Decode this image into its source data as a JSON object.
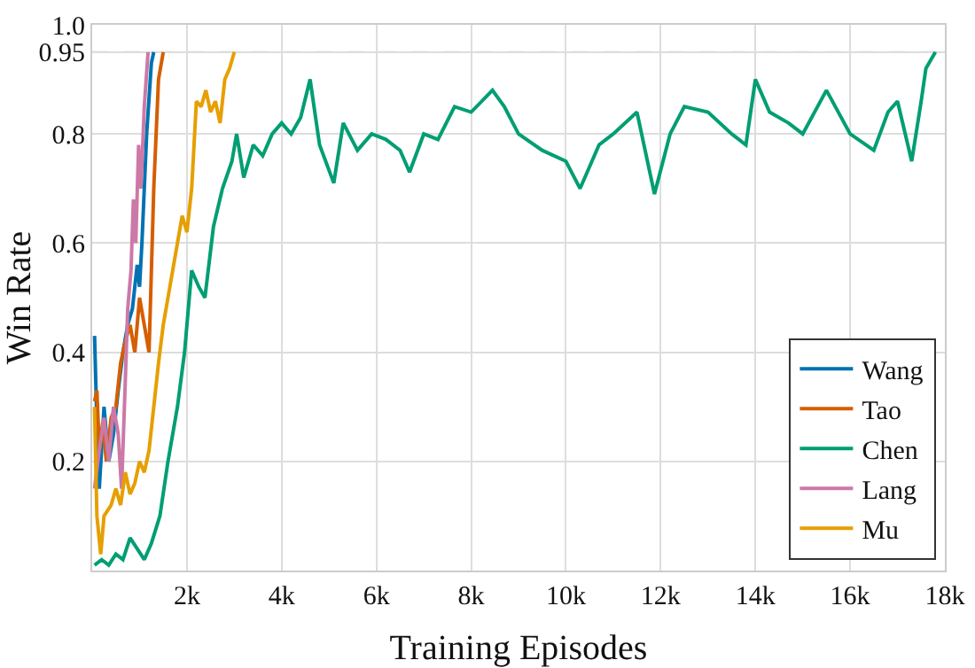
{
  "chart_data": {
    "type": "line",
    "xlabel": "Training Episodes",
    "ylabel": "Win Rate",
    "xlim": [
      0,
      18000
    ],
    "ylim": [
      0,
      1
    ],
    "xticks": [
      {
        "value": 2000,
        "label": "2k"
      },
      {
        "value": 4000,
        "label": "4k"
      },
      {
        "value": 6000,
        "label": "6k"
      },
      {
        "value": 8000,
        "label": "8k"
      },
      {
        "value": 10000,
        "label": "10k"
      },
      {
        "value": 12000,
        "label": "12k"
      },
      {
        "value": 14000,
        "label": "14k"
      },
      {
        "value": 16000,
        "label": "16k"
      },
      {
        "value": 18000,
        "label": "18k"
      }
    ],
    "yticks": [
      0.2,
      0.4,
      0.6,
      0.8,
      0.95,
      {
        "value": 1,
        "label": "1.0"
      }
    ],
    "grid": true,
    "legend": "bottom right",
    "marker": "none",
    "line_style": "solid",
    "ref_lines": [
      {
        "axis": "y",
        "value": 0.95,
        "line_style": "dashed",
        "color": "#cccccc"
      }
    ],
    "series": [
      {
        "name": "Wang",
        "color": "#0072b2",
        "x": [
          50,
          120,
          150,
          250,
          350,
          450,
          550,
          650,
          750,
          850,
          950,
          1000,
          1050,
          1150,
          1250,
          1300
        ],
        "values": [
          0.43,
          0.2,
          0.15,
          0.3,
          0.2,
          0.25,
          0.33,
          0.4,
          0.45,
          0.48,
          0.56,
          0.52,
          0.6,
          0.8,
          0.93,
          0.95
        ]
      },
      {
        "name": "Tao",
        "color": "#d55e00",
        "x": [
          50,
          100,
          150,
          220,
          300,
          400,
          500,
          600,
          700,
          800,
          900,
          1000,
          1100,
          1200,
          1300,
          1400,
          1500
        ],
        "values": [
          0.31,
          0.33,
          0.22,
          0.27,
          0.2,
          0.28,
          0.3,
          0.38,
          0.42,
          0.45,
          0.4,
          0.5,
          0.45,
          0.4,
          0.7,
          0.9,
          0.95
        ]
      },
      {
        "name": "Chen",
        "color": "#009e73",
        "x": [
          50,
          200,
          350,
          500,
          650,
          800,
          950,
          1100,
          1250,
          1430,
          1600,
          1800,
          1950,
          2100,
          2250,
          2380,
          2560,
          2750,
          2950,
          3050,
          3200,
          3400,
          3600,
          3800,
          4000,
          4200,
          4400,
          4600,
          4800,
          5100,
          5300,
          5600,
          5900,
          6200,
          6500,
          6700,
          7000,
          7300,
          7650,
          8000,
          8450,
          8700,
          9000,
          9500,
          10000,
          10300,
          10700,
          11000,
          11500,
          11870,
          12200,
          12500,
          13000,
          13500,
          13800,
          14000,
          14300,
          14700,
          15000,
          15500,
          16000,
          16500,
          16800,
          17000,
          17300,
          17500,
          17600,
          17800
        ],
        "values": [
          0.01,
          0.02,
          0.01,
          0.03,
          0.02,
          0.06,
          0.04,
          0.02,
          0.05,
          0.1,
          0.2,
          0.3,
          0.4,
          0.55,
          0.52,
          0.5,
          0.63,
          0.7,
          0.75,
          0.8,
          0.72,
          0.78,
          0.76,
          0.8,
          0.82,
          0.8,
          0.83,
          0.9,
          0.78,
          0.71,
          0.82,
          0.77,
          0.8,
          0.79,
          0.77,
          0.73,
          0.8,
          0.79,
          0.85,
          0.84,
          0.88,
          0.85,
          0.8,
          0.77,
          0.75,
          0.7,
          0.78,
          0.8,
          0.84,
          0.69,
          0.8,
          0.85,
          0.84,
          0.8,
          0.78,
          0.9,
          0.84,
          0.82,
          0.8,
          0.88,
          0.8,
          0.77,
          0.84,
          0.86,
          0.75,
          0.86,
          0.92,
          0.95
        ]
      },
      {
        "name": "Lang",
        "color": "#cc79a7",
        "x": [
          50,
          150,
          250,
          350,
          450,
          550,
          620,
          700,
          750,
          820,
          870,
          920,
          980,
          1030,
          1100,
          1180
        ],
        "values": [
          0.15,
          0.22,
          0.28,
          0.2,
          0.3,
          0.25,
          0.15,
          0.35,
          0.48,
          0.55,
          0.68,
          0.6,
          0.78,
          0.7,
          0.85,
          0.95
        ]
      },
      {
        "name": "Mu",
        "color": "#e69f00",
        "x": [
          50,
          100,
          180,
          250,
          400,
          500,
          600,
          700,
          800,
          900,
          1000,
          1100,
          1200,
          1300,
          1400,
          1500,
          1600,
          1700,
          1800,
          1900,
          2000,
          2100,
          2200,
          2300,
          2400,
          2500,
          2600,
          2700,
          2800,
          2900,
          3000
        ],
        "values": [
          0.3,
          0.1,
          0.03,
          0.1,
          0.12,
          0.15,
          0.12,
          0.18,
          0.14,
          0.16,
          0.2,
          0.18,
          0.22,
          0.3,
          0.38,
          0.45,
          0.5,
          0.55,
          0.6,
          0.65,
          0.62,
          0.7,
          0.86,
          0.85,
          0.88,
          0.84,
          0.86,
          0.82,
          0.9,
          0.92,
          0.95
        ]
      }
    ]
  }
}
